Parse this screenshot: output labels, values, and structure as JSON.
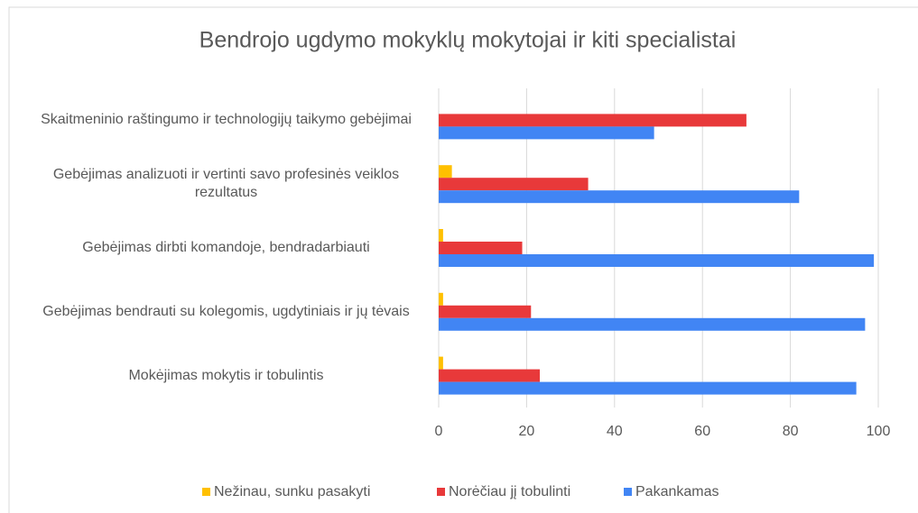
{
  "chart_data": {
    "type": "hbar",
    "title": "Bendrojo ugdymo mokyklų mokytojai ir kiti specialistai",
    "categories": [
      "Skaitmeninio raštingumo ir technologijų taikymo gebėjimai",
      "Gebėjimas analizuoti ir vertinti savo profesinės veiklos rezultatus",
      "Gebėjimas dirbti komandoje, bendradarbiauti",
      "Gebėjimas bendrauti su kolegomis, ugdytiniais ir jų tėvais",
      "Mokėjimas mokytis ir tobulintis"
    ],
    "series": [
      {
        "name": "Nežinau, sunku pasakyti",
        "color": "#ffc000",
        "values": [
          0,
          3,
          1,
          1,
          1
        ]
      },
      {
        "name": "Norėčiau jį tobulinti",
        "color": "#e8393a",
        "values": [
          70,
          34,
          19,
          21,
          23
        ]
      },
      {
        "name": "Pakankamas",
        "color": "#4185f4",
        "values": [
          49,
          82,
          99,
          97,
          95
        ]
      }
    ],
    "xlim": [
      0,
      100
    ],
    "xticks": [
      0,
      20,
      40,
      60,
      80,
      100
    ],
    "grid": true,
    "legend": "bottom"
  }
}
